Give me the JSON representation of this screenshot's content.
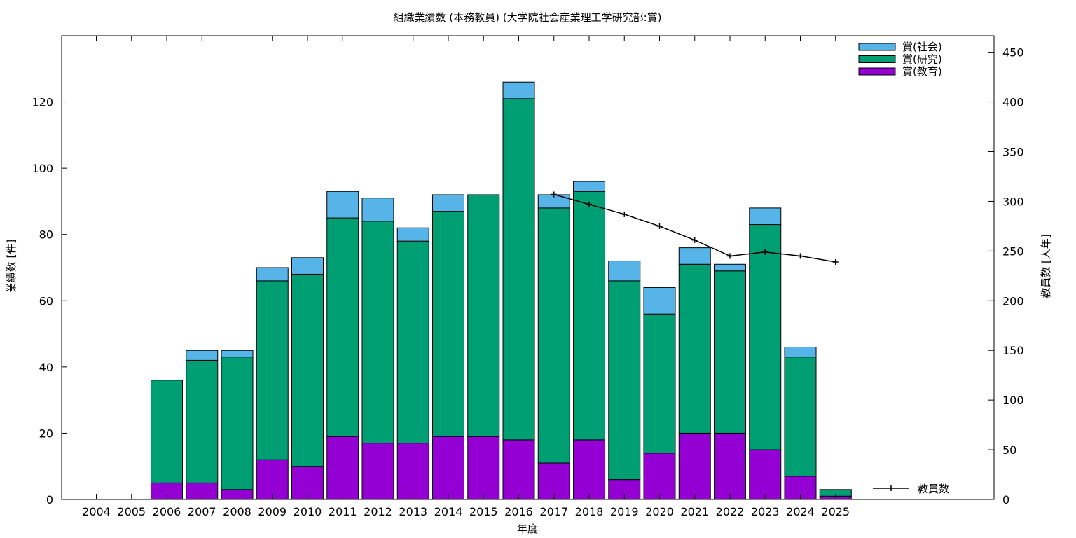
{
  "chart_data": {
    "type": "bar",
    "stacked": true,
    "title": "組織業績数 (本務教員) (大学院社会産業理工学研究部:賞)",
    "xlabel": "年度",
    "ylabel": "業績数 [件]",
    "y2label": "教員数 [人年]",
    "ylim": [
      0,
      140
    ],
    "y2lim": [
      0,
      466.67
    ],
    "yticks": [
      0,
      20,
      40,
      60,
      80,
      100,
      120
    ],
    "y2ticks": [
      0,
      50,
      100,
      150,
      200,
      250,
      300,
      350,
      400,
      450
    ],
    "grid": false,
    "legend_position": "top-right",
    "categories": [
      "2004",
      "2005",
      "2006",
      "2007",
      "2008",
      "2009",
      "2010",
      "2011",
      "2012",
      "2013",
      "2014",
      "2015",
      "2016",
      "2017",
      "2018",
      "2019",
      "2020",
      "2021",
      "2022",
      "2023",
      "2024",
      "2025"
    ],
    "series": [
      {
        "name": "賞(教育)",
        "color": "#9400d3",
        "values": [
          0,
          0,
          5,
          5,
          3,
          12,
          10,
          19,
          17,
          17,
          19,
          19,
          18,
          11,
          18,
          6,
          14,
          20,
          20,
          15,
          7,
          1
        ]
      },
      {
        "name": "賞(研究)",
        "color": "#009e73",
        "values": [
          0,
          0,
          31,
          37,
          40,
          54,
          58,
          66,
          67,
          61,
          68,
          73,
          103,
          77,
          75,
          60,
          42,
          51,
          49,
          68,
          36,
          2
        ]
      },
      {
        "name": "賞(社会)",
        "color": "#56b4e9",
        "values": [
          0,
          0,
          0,
          3,
          2,
          4,
          5,
          8,
          7,
          4,
          5,
          0,
          5,
          4,
          3,
          6,
          8,
          5,
          2,
          5,
          3,
          0
        ]
      }
    ],
    "line_series": {
      "name": "教員数",
      "axis": "y2",
      "color": "#000000",
      "x": [
        "2017",
        "2018",
        "2019",
        "2020",
        "2021",
        "2022",
        "2023",
        "2024",
        "2025"
      ],
      "values": [
        307,
        297,
        287,
        275,
        261,
        245,
        249,
        245,
        239
      ]
    }
  }
}
